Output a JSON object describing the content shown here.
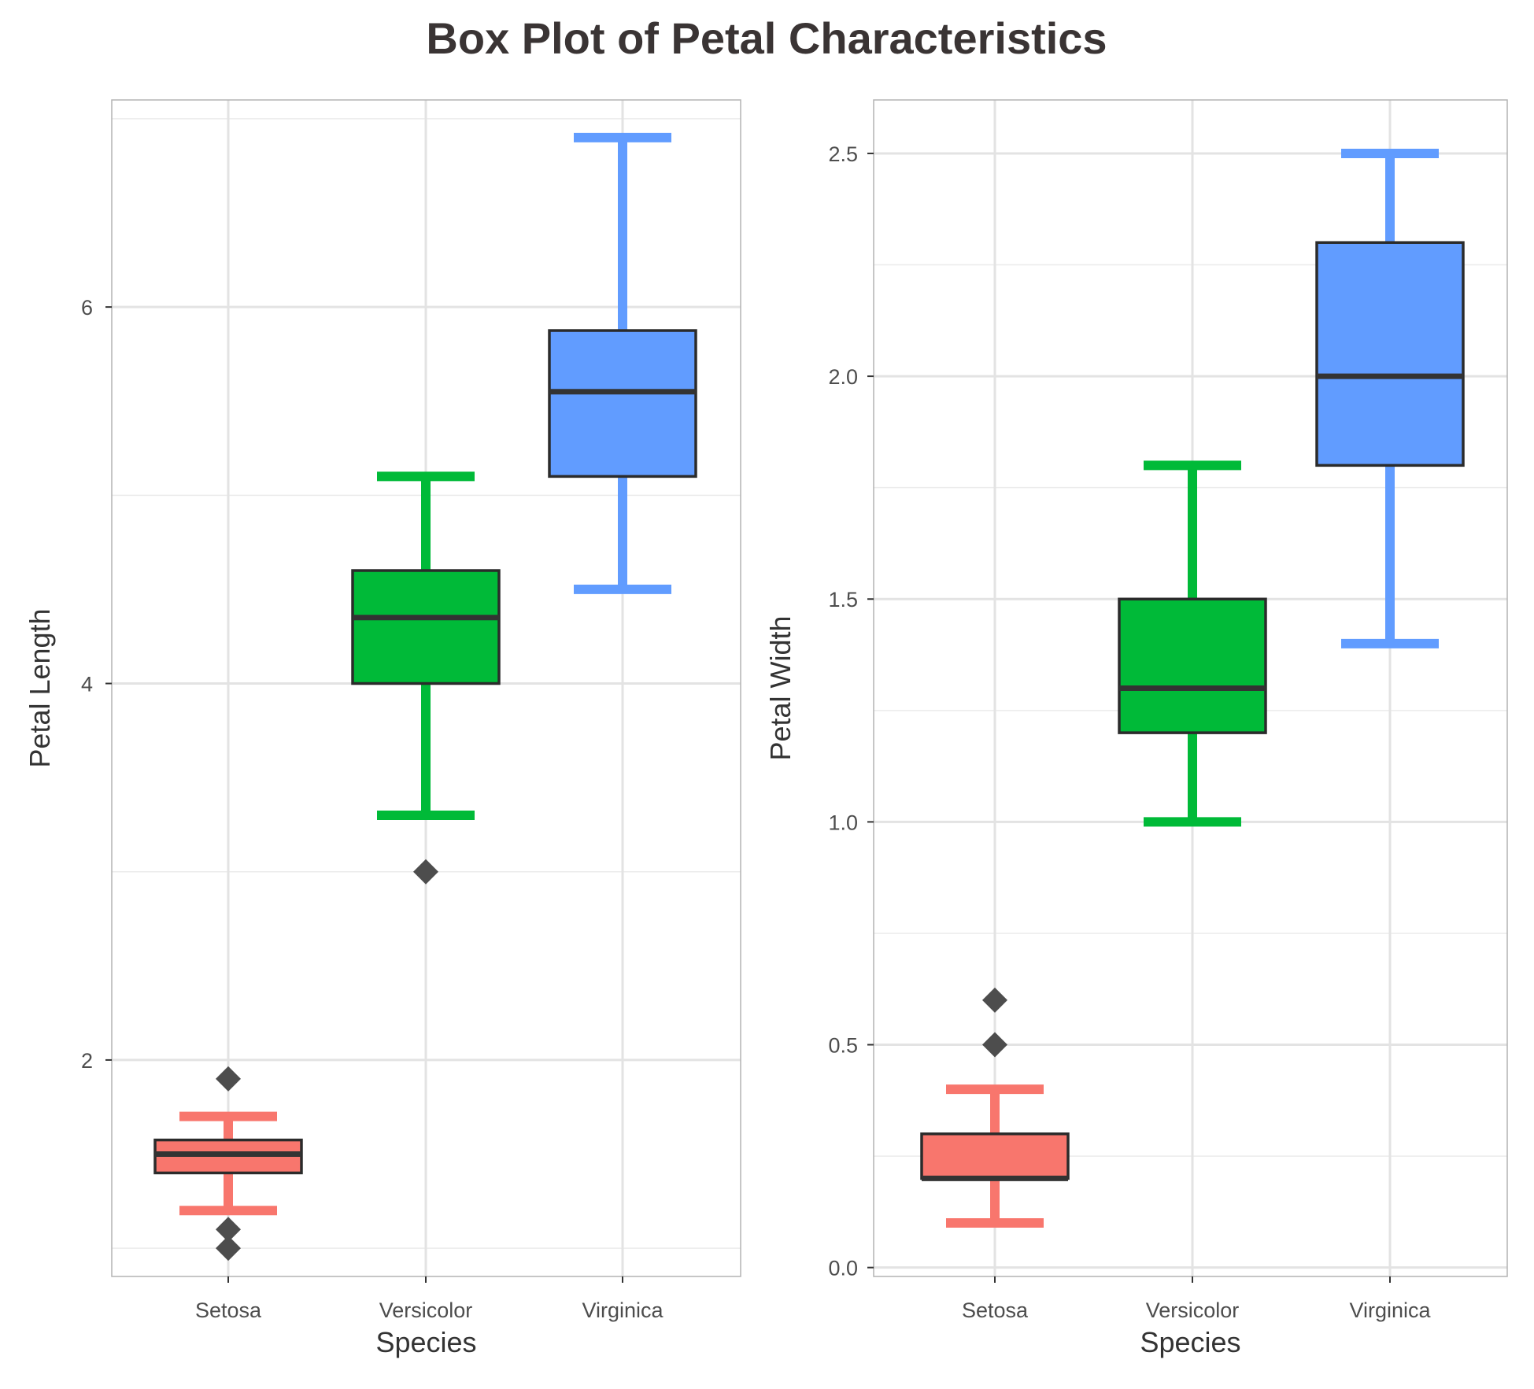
{
  "figure": {
    "title": "Box Plot of Petal Characteristics"
  },
  "chart_data": [
    {
      "type": "box",
      "xlabel": "Species",
      "ylabel": "Petal Length",
      "categories": [
        "Setosa",
        "Versicolor",
        "Virginica"
      ],
      "colors": [
        "#f8766d",
        "#00ba38",
        "#619cff"
      ],
      "ylim": [
        0.85,
        7.1
      ],
      "yticks": [
        2,
        4,
        6
      ],
      "ytick_labels": [
        "2",
        "4",
        "6"
      ],
      "minor_yticks": [
        1,
        3,
        5,
        7
      ],
      "grid": true,
      "boxes": [
        {
          "category": "Setosa",
          "whisker_low": 1.2,
          "q1": 1.4,
          "median": 1.5,
          "q3": 1.575,
          "whisker_high": 1.7,
          "outliers": [
            1.9,
            1.1,
            1.0
          ]
        },
        {
          "category": "Versicolor",
          "whisker_low": 3.3,
          "q1": 4.0,
          "median": 4.35,
          "q3": 4.6,
          "whisker_high": 5.1,
          "outliers": [
            3.0
          ]
        },
        {
          "category": "Virginica",
          "whisker_low": 4.5,
          "q1": 5.1,
          "median": 5.55,
          "q3": 5.875,
          "whisker_high": 6.9,
          "outliers": []
        }
      ]
    },
    {
      "type": "box",
      "xlabel": "Species",
      "ylabel": "Petal Width",
      "categories": [
        "Setosa",
        "Versicolor",
        "Virginica"
      ],
      "colors": [
        "#f8766d",
        "#00ba38",
        "#619cff"
      ],
      "ylim": [
        -0.02,
        2.62
      ],
      "yticks": [
        0.0,
        0.5,
        1.0,
        1.5,
        2.0,
        2.5
      ],
      "ytick_labels": [
        "0.0",
        "0.5",
        "1.0",
        "1.5",
        "2.0",
        "2.5"
      ],
      "minor_yticks": [
        0.25,
        0.75,
        1.25,
        1.75,
        2.25
      ],
      "grid": true,
      "boxes": [
        {
          "category": "Setosa",
          "whisker_low": 0.1,
          "q1": 0.2,
          "median": 0.2,
          "q3": 0.3,
          "whisker_high": 0.4,
          "outliers": [
            0.5,
            0.6
          ]
        },
        {
          "category": "Versicolor",
          "whisker_low": 1.0,
          "q1": 1.2,
          "median": 1.3,
          "q3": 1.5,
          "whisker_high": 1.8,
          "outliers": []
        },
        {
          "category": "Virginica",
          "whisker_low": 1.4,
          "q1": 1.8,
          "median": 2.0,
          "q3": 2.3,
          "whisker_high": 2.5,
          "outliers": []
        }
      ]
    }
  ]
}
